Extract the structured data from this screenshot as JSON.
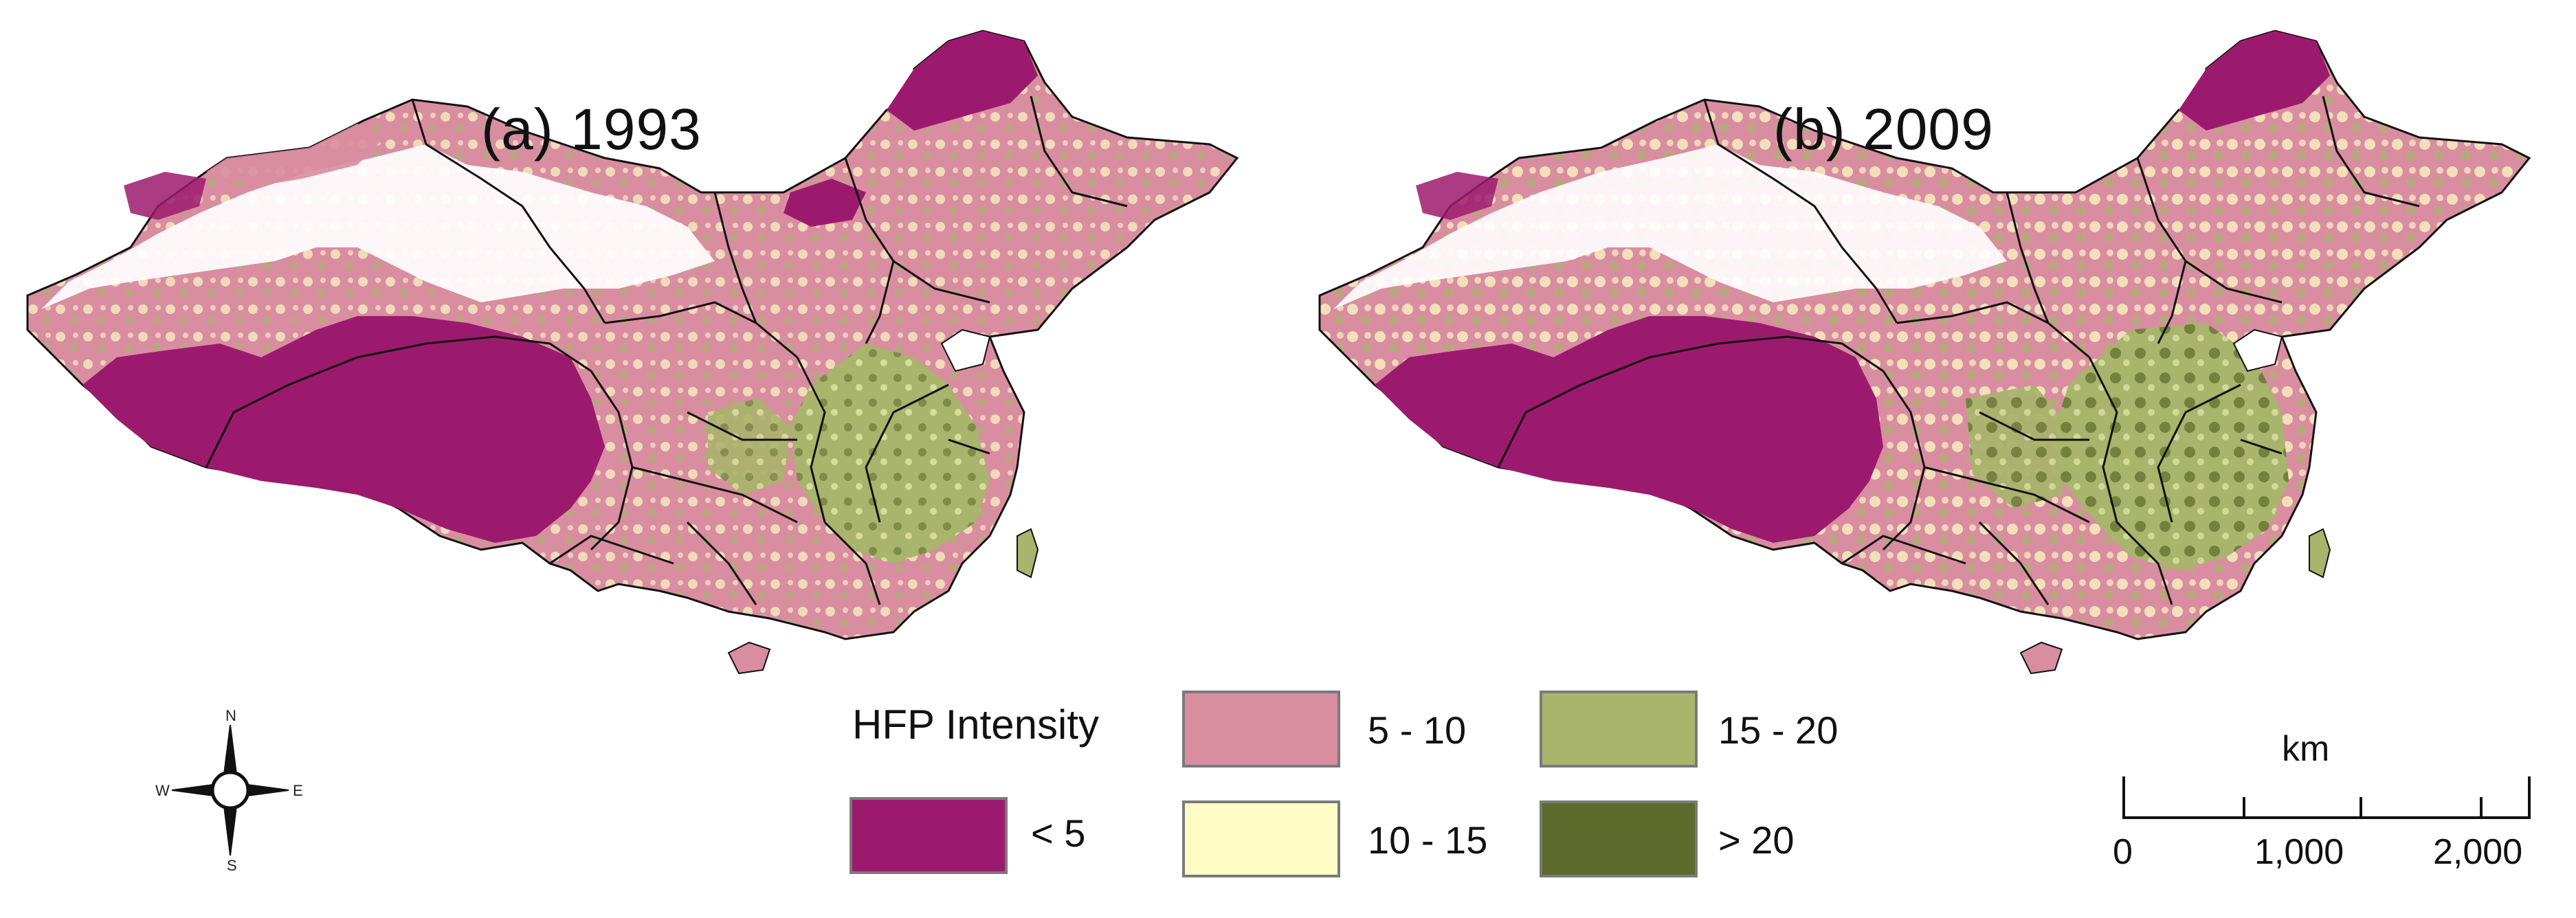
{
  "panels": [
    {
      "id": "a",
      "title": "(a) 1993"
    },
    {
      "id": "b",
      "title": "(b) 2009"
    }
  ],
  "legend": {
    "title": "HFP Intensity",
    "classes": [
      {
        "label": "< 5",
        "color": "#9c1a6e"
      },
      {
        "label": "5 - 10",
        "color": "#d98da1"
      },
      {
        "label": "10 - 15",
        "color": "#fcfcc4"
      },
      {
        "label": "15 - 20",
        "color": "#a9b46c"
      },
      {
        "label": "> 20",
        "color": "#5d6a2b"
      }
    ]
  },
  "compass": {
    "n": "N",
    "s": "S",
    "e": "E",
    "w": "W"
  },
  "scalebar": {
    "unit": "km",
    "labels": [
      "0",
      "1,000",
      "2,000"
    ]
  },
  "colors": {
    "boundary": "#111111",
    "background": "#ffffff"
  }
}
